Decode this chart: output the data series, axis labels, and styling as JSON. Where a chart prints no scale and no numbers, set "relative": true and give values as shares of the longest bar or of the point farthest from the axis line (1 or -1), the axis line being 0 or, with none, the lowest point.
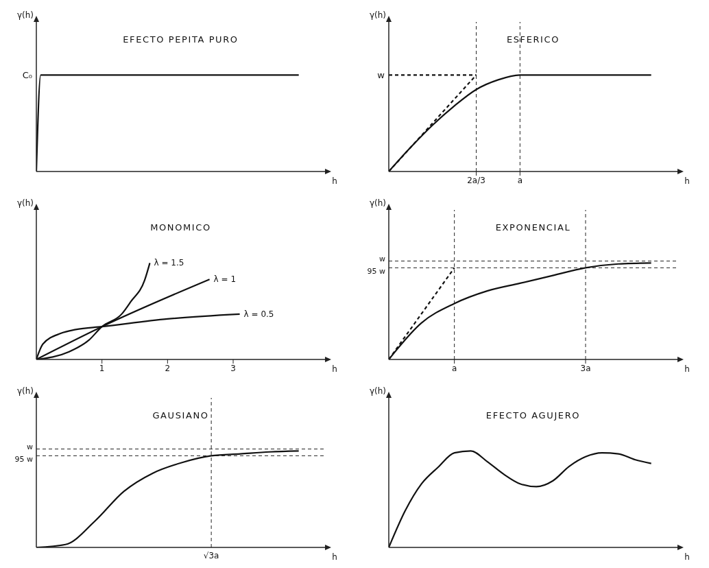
{
  "chart_data": [
    {
      "type": "line",
      "title": "EFECTO PEPITA PURO",
      "xlabel": "h",
      "ylabel": "γ(h)",
      "relative": true,
      "categories": [
        null,
        null,
        null,
        null,
        null,
        null,
        null,
        null,
        null,
        null,
        null,
        null,
        null,
        null,
        null,
        null,
        null,
        null,
        null,
        null,
        null,
        null,
        null,
        null,
        null,
        null,
        null,
        null,
        null,
        null,
        null,
        null,
        null,
        null,
        null,
        null,
        null,
        null,
        null,
        null,
        null,
        null,
        null,
        null,
        null,
        null,
        null,
        null,
        null,
        null,
        null,
        null,
        null,
        null,
        null,
        null,
        null,
        null,
        null,
        null,
        null
      ],
      "series": [
        {
          "color": "#111111",
          "values": [
            0,
            1,
            1,
            1,
            1,
            1,
            1,
            1,
            1,
            1,
            1,
            1,
            1,
            1,
            1,
            1,
            1,
            1,
            1,
            1,
            1,
            1,
            1,
            1,
            1,
            1,
            1,
            1,
            1,
            1,
            1,
            1,
            1,
            1,
            1,
            1,
            1,
            1,
            1,
            1,
            1,
            1,
            1,
            1,
            1,
            1,
            1,
            1,
            1,
            1,
            1,
            1,
            1,
            1,
            1,
            1,
            1,
            1,
            1,
            1,
            1
          ]
        }
      ],
      "annotations": [
        "C₀"
      ]
    },
    {
      "type": "line",
      "title": "ESFERICO",
      "xlabel": "h",
      "ylabel": "γ(h)",
      "relative": true,
      "categories": [
        null,
        null,
        null,
        null,
        "2a/3",
        null,
        "a",
        null,
        null,
        null,
        null,
        null,
        null
      ],
      "series": [
        {
          "color": "#111111",
          "values": [
            0,
            0.25,
            0.48,
            0.68,
            0.85,
            0.95,
            1,
            1,
            1,
            1,
            1,
            1,
            1
          ]
        },
        {
          "type": "line",
          "color": "#111111",
          "line_style": "dashed",
          "values": [
            0,
            0.25,
            0.5,
            0.75,
            1,
            null,
            null,
            null,
            null,
            null,
            null,
            null,
            null
          ]
        },
        {
          "type": "line",
          "color": "#111111",
          "line_style": "dashed",
          "values": [
            1,
            1,
            1,
            1,
            1,
            null,
            null,
            null,
            null,
            null,
            null,
            null,
            null
          ]
        }
      ],
      "annotations": [
        "w"
      ],
      "ref_lines": [
        {
          "axis": "x",
          "value": "2a/3",
          "line_style": "dashed"
        },
        {
          "axis": "x",
          "value": "a",
          "line_style": "dashed"
        }
      ]
    },
    {
      "type": "line",
      "title": "MONOMICO",
      "xlabel": "h",
      "ylabel": "γ(h)",
      "relative": true,
      "xlim": [
        0,
        4.4
      ],
      "xticks": [
        1,
        2,
        3
      ],
      "series": [
        {
          "name": "λ = 1.5",
          "color": "#111111",
          "x": [
            0,
            0.5,
            0.8,
            1,
            1.3,
            1.44,
            1.65,
            1.73
          ],
          "values": [
            0,
            0.08,
            0.2,
            0.34,
            0.47,
            0.6,
            0.82,
            1
          ]
        },
        {
          "name": "λ = 1",
          "color": "#111111",
          "x": [
            0,
            1,
            2.64
          ],
          "values": [
            0,
            0.34,
            0.83
          ]
        },
        {
          "name": "λ = 0.5",
          "color": "#111111",
          "x": [
            0,
            0.1,
            0.37,
            0.6,
            1,
            2,
            3.1
          ],
          "values": [
            0,
            0.16,
            0.27,
            0.31,
            0.34,
            0.42,
            0.47
          ]
        }
      ]
    },
    {
      "type": "line",
      "title": "EXPONENCIAL",
      "xlabel": "h",
      "ylabel": "γ(h)",
      "relative": true,
      "categories": [
        null,
        null,
        "a",
        null,
        null,
        null,
        "3a",
        null,
        null
      ],
      "series": [
        {
          "color": "#111111",
          "values": [
            0,
            0.38,
            0.58,
            0.71,
            0.79,
            0.87,
            0.95,
            0.99,
            1
          ]
        },
        {
          "type": "line",
          "color": "#111111",
          "line_style": "dashed",
          "values": [
            0,
            0.475,
            0.95,
            null,
            null,
            null,
            null,
            null,
            null
          ]
        }
      ],
      "ref_lines": [
        {
          "axis": "y",
          "value": 1.02,
          "label": "w",
          "line_style": "dashed"
        },
        {
          "axis": "y",
          "value": 0.95,
          "label": "95 w",
          "line_style": "dashed"
        },
        {
          "axis": "x",
          "value": "a",
          "line_style": "dashed"
        },
        {
          "axis": "x",
          "value": "3a",
          "line_style": "dashed"
        }
      ]
    },
    {
      "type": "line",
      "title": "GAUSIANO",
      "xlabel": "h",
      "ylabel": "γ(h)",
      "relative": true,
      "categories": [
        null,
        null,
        null,
        null,
        null,
        null,
        null,
        null,
        null,
        null
      ],
      "annotations": [
        "√3a"
      ],
      "series": [
        {
          "color": "#111111",
          "values": [
            0,
            0.03,
            0.27,
            0.58,
            0.77,
            0.88,
            0.95,
            0.97,
            0.99,
            1
          ]
        }
      ],
      "ref_lines": [
        {
          "axis": "y",
          "value": 1.02,
          "label": "w",
          "line_style": "dashed"
        },
        {
          "axis": "y",
          "value": 0.95,
          "label": "95 w",
          "line_style": "dashed"
        }
      ]
    },
    {
      "type": "line",
      "title": "EFECTO AGUJERO",
      "xlabel": "h",
      "ylabel": "γ(h)",
      "relative": true,
      "categories": [
        null,
        null,
        null,
        null,
        null,
        null,
        null,
        null,
        null,
        null,
        null,
        null,
        null,
        null,
        null,
        null,
        null
      ],
      "series": [
        {
          "color": "#111111",
          "values": [
            0,
            0.38,
            0.66,
            0.83,
            0.98,
            1,
            0.89,
            0.76,
            0.66,
            0.63,
            0.69,
            0.84,
            0.94,
            0.98,
            0.97,
            0.91,
            0.87
          ]
        }
      ]
    }
  ]
}
